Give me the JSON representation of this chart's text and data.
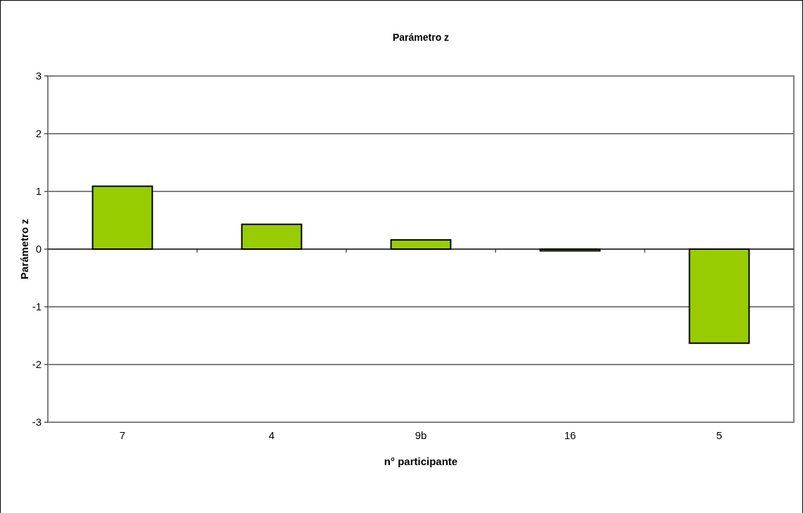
{
  "chart_data": {
    "type": "bar",
    "title": "Parámetro z",
    "xlabel": "n° participante",
    "ylabel": "Parámetro z",
    "categories": [
      "7",
      "4",
      "9b",
      "16",
      "5"
    ],
    "values": [
      1.09,
      0.43,
      0.16,
      -0.03,
      -1.63
    ],
    "color": "#99cc00",
    "ylim": [
      -3,
      3
    ],
    "yticks": [
      -3,
      -2,
      -1,
      0,
      1,
      2,
      3
    ],
    "grid": "y"
  }
}
